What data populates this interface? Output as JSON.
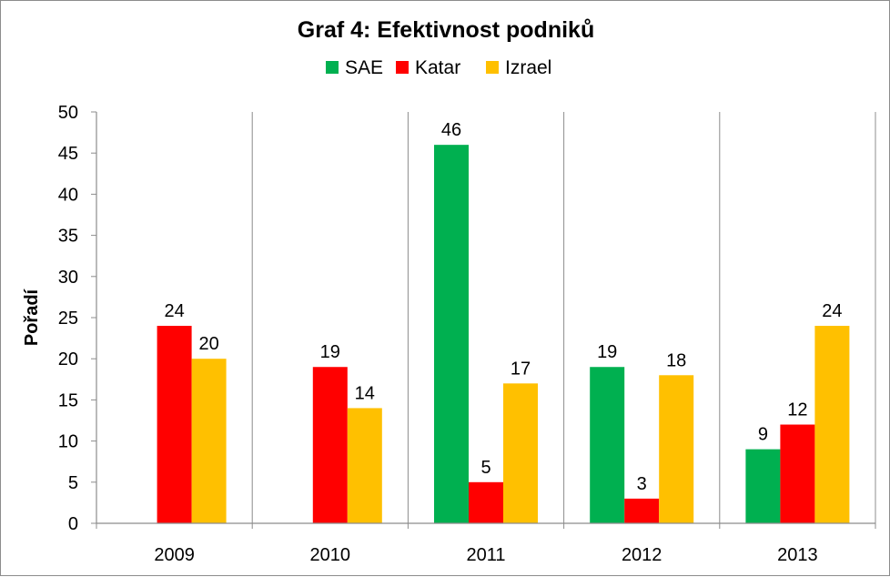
{
  "chart_data": {
    "type": "bar",
    "title": "Graf 4: Efektivnost podniků",
    "xlabel": "",
    "ylabel": "Pořadí",
    "categories": [
      "2009",
      "2010",
      "2011",
      "2012",
      "2013"
    ],
    "series": [
      {
        "name": "SAE",
        "color": "#00b050",
        "values": [
          null,
          null,
          46,
          19,
          9
        ]
      },
      {
        "name": "Katar",
        "color": "#ff0000",
        "values": [
          24,
          19,
          5,
          3,
          12
        ]
      },
      {
        "name": "Izrael",
        "color": "#ffc000",
        "values": [
          20,
          14,
          17,
          18,
          24
        ]
      }
    ],
    "ylim": [
      0,
      50
    ],
    "yticks": [
      "0",
      "5",
      "10",
      "15",
      "20",
      "25",
      "30",
      "35",
      "40",
      "45",
      "50"
    ],
    "grid": "vertical category separators",
    "legend_position": "top",
    "data_labels": true
  }
}
